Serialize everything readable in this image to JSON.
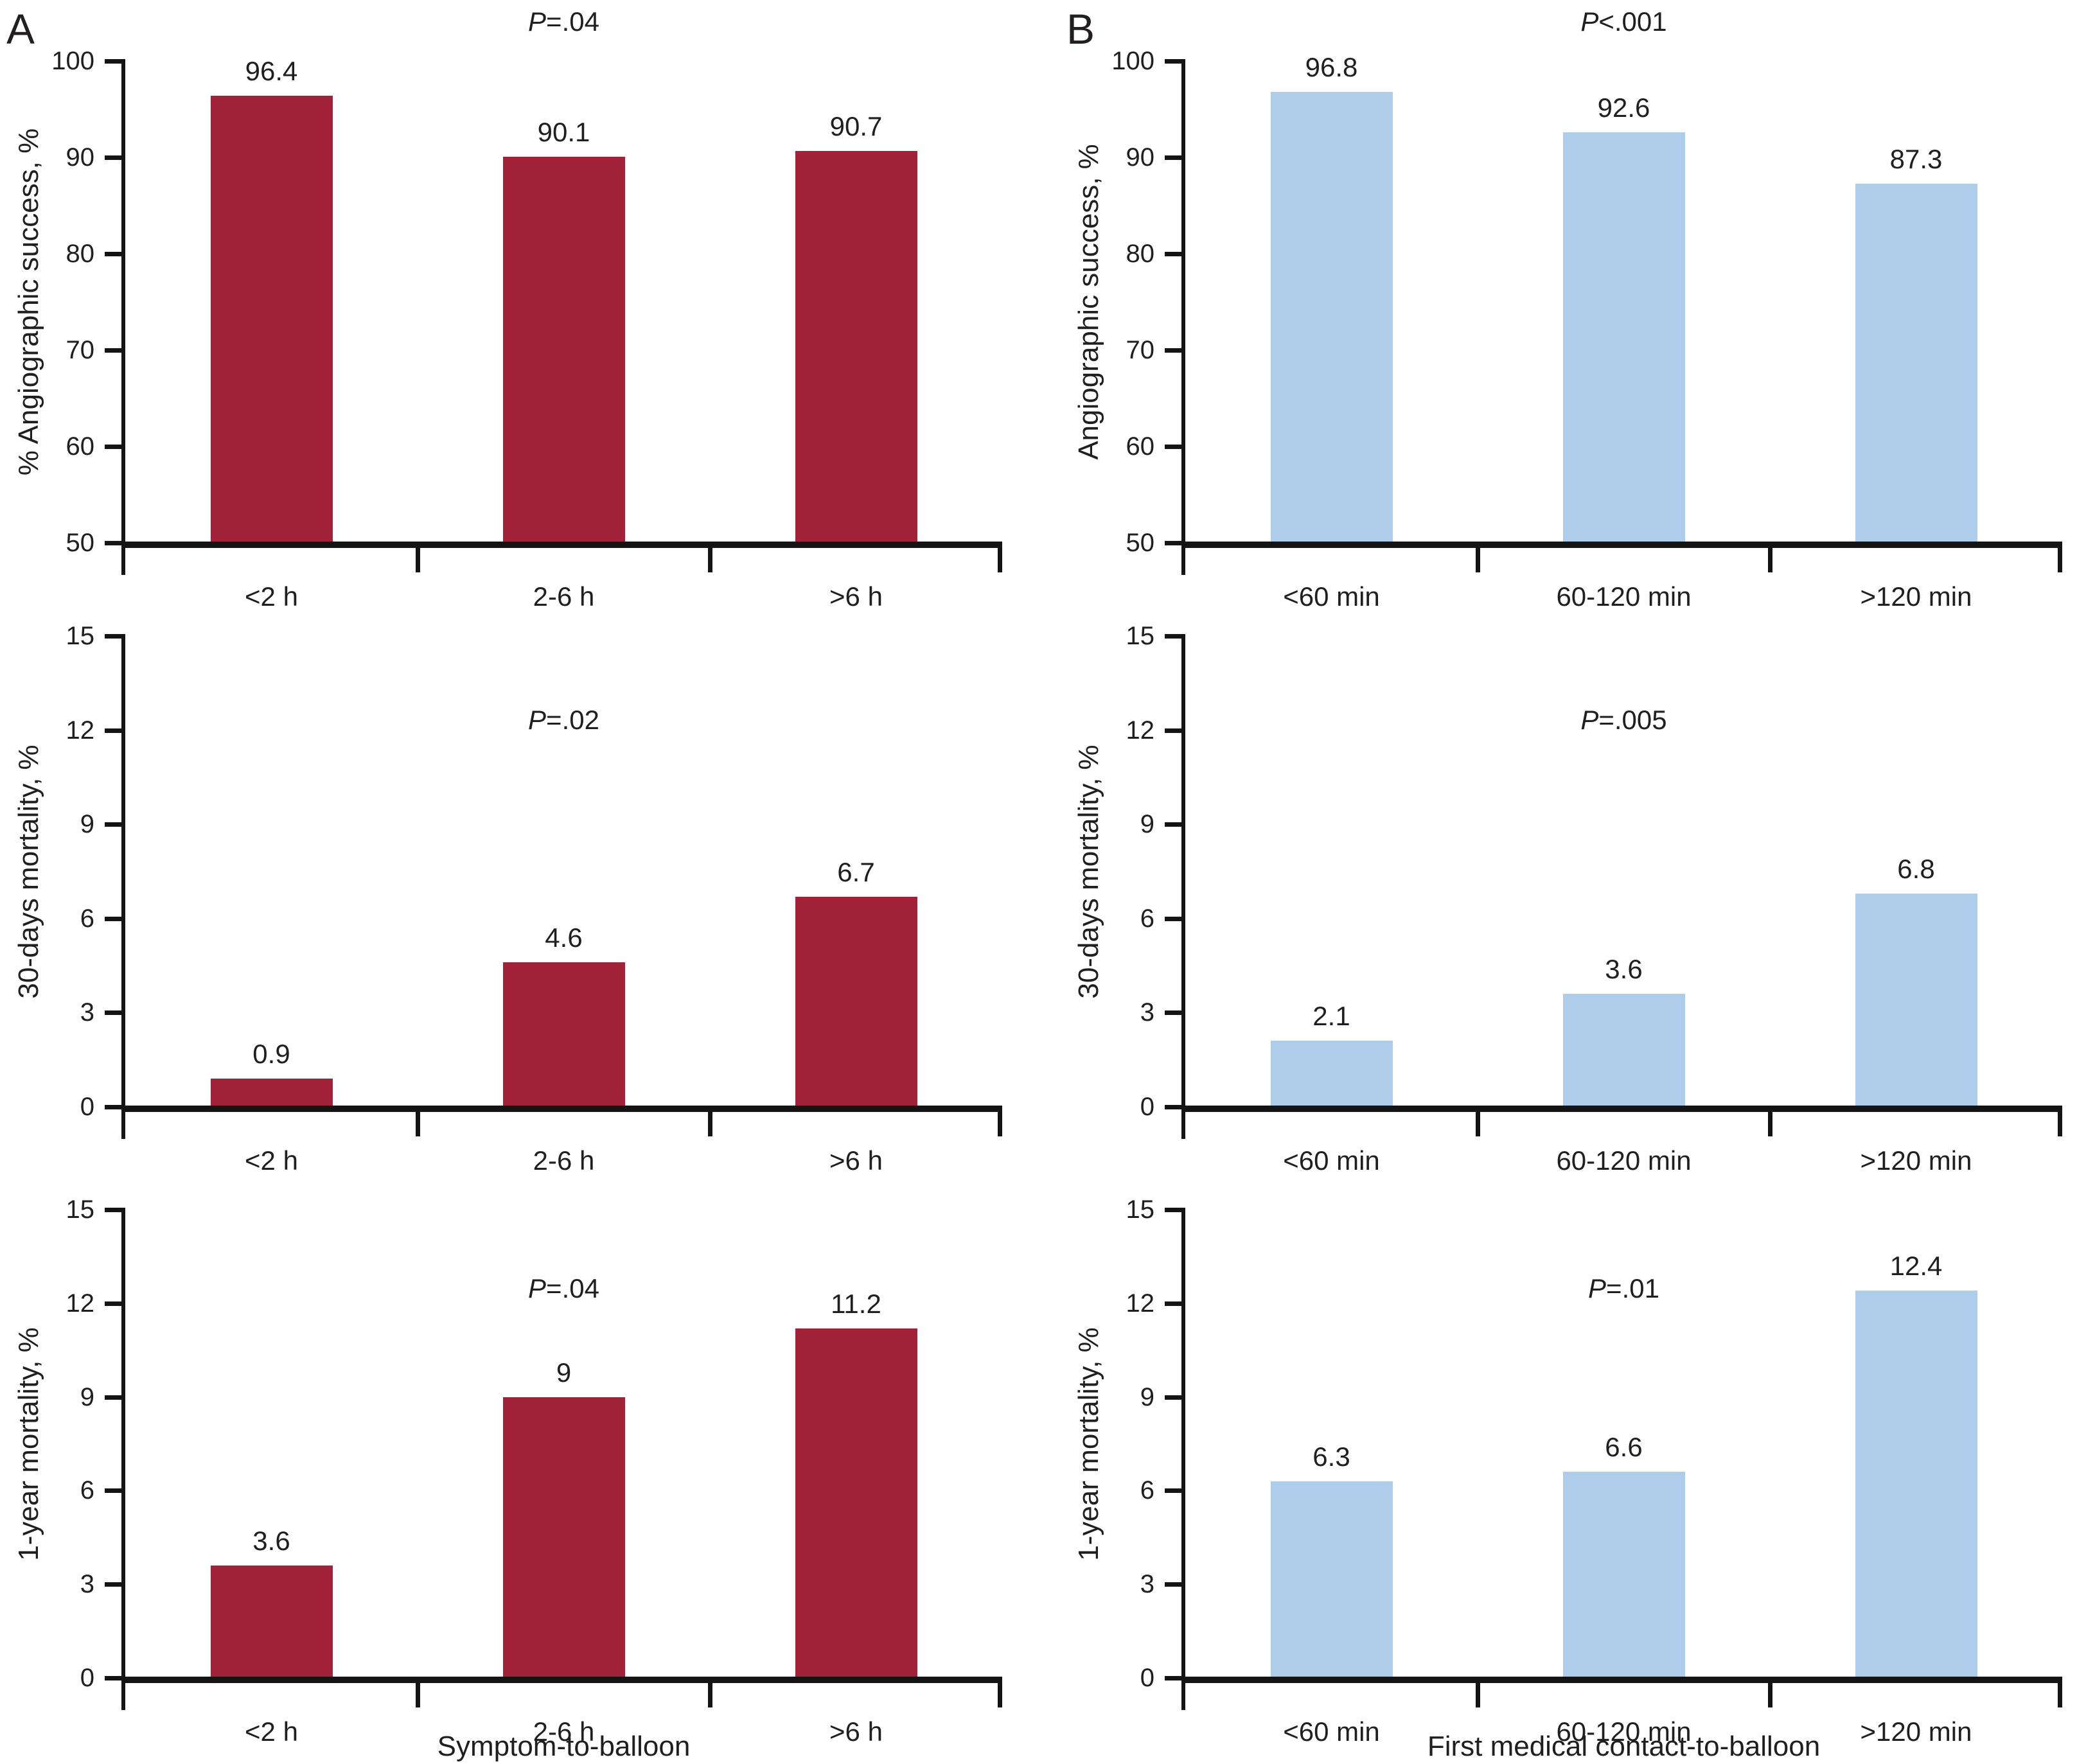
{
  "figure": {
    "panel_labels": [
      "A",
      "B"
    ]
  },
  "colors": {
    "panel_a_bar": "#a22339",
    "panel_b_bar": "#aecdeb",
    "axis_line": "#141414",
    "text": "#1f1f1f",
    "background": "#ffffff"
  },
  "chart_data": [
    {
      "type": "bar",
      "panel": "A",
      "row": 1,
      "p_value": "P=.04",
      "ylabel": "% Angiographic success, %",
      "xlabel": "",
      "categories": [
        "<2 h",
        "2-6 h",
        ">6 h"
      ],
      "values": [
        96.4,
        90.1,
        90.7
      ],
      "value_labels": [
        "96.4",
        "90.1",
        "90.7"
      ],
      "ylim": [
        50,
        100
      ],
      "yticks": [
        100,
        90,
        80,
        70,
        60,
        50
      ],
      "ytick_labels": [
        "100",
        "90",
        "80",
        "70",
        "60",
        "50"
      ],
      "bar_color": "#a22339",
      "grid": false,
      "legend_position": "none"
    },
    {
      "type": "bar",
      "panel": "A",
      "row": 2,
      "p_value": "P=.02",
      "ylabel": "30-days mortality, %",
      "xlabel": "",
      "categories": [
        "<2 h",
        "2-6 h",
        ">6 h"
      ],
      "values": [
        0.9,
        4.6,
        6.7
      ],
      "value_labels": [
        "0.9",
        "4.6",
        "6.7"
      ],
      "ylim": [
        0,
        15
      ],
      "yticks": [
        15,
        12,
        9,
        6,
        3,
        0
      ],
      "ytick_labels": [
        "15",
        "12",
        "9",
        "6",
        "3",
        "0"
      ],
      "bar_color": "#a22339",
      "grid": false,
      "legend_position": "none"
    },
    {
      "type": "bar",
      "panel": "A",
      "row": 3,
      "p_value": "P=.04",
      "ylabel": "1-year mortality, %",
      "xlabel": "Symptom-to-balloon",
      "categories": [
        "<2 h",
        "2-6 h",
        ">6 h"
      ],
      "values": [
        3.6,
        9,
        11.2
      ],
      "value_labels": [
        "3.6",
        "9",
        "11.2"
      ],
      "ylim": [
        0,
        15
      ],
      "yticks": [
        15,
        12,
        9,
        6,
        3,
        0
      ],
      "ytick_labels": [
        "15",
        "12",
        "9",
        "6",
        "3",
        "0"
      ],
      "bar_color": "#a22339",
      "grid": false,
      "legend_position": "none"
    },
    {
      "type": "bar",
      "panel": "B",
      "row": 1,
      "p_value": "P<.001",
      "ylabel": "Angiographic success, %",
      "xlabel": "",
      "categories": [
        "<60 min",
        "60-120 min",
        ">120 min"
      ],
      "values": [
        96.8,
        92.6,
        87.3
      ],
      "value_labels": [
        "96.8",
        "92.6",
        "87.3"
      ],
      "ylim": [
        50,
        100
      ],
      "yticks": [
        100,
        90,
        80,
        70,
        60,
        50
      ],
      "ytick_labels": [
        "100",
        "90",
        "80",
        "70",
        "60",
        "50"
      ],
      "bar_color": "#aecdeb",
      "grid": false,
      "legend_position": "none"
    },
    {
      "type": "bar",
      "panel": "B",
      "row": 2,
      "p_value": "P=.005",
      "ylabel": "30-days mortality, %",
      "xlabel": "",
      "categories": [
        "<60 min",
        "60-120 min",
        ">120 min"
      ],
      "values": [
        2.1,
        3.6,
        6.8
      ],
      "value_labels": [
        "2.1",
        "3.6",
        "6.8"
      ],
      "ylim": [
        0,
        15
      ],
      "yticks": [
        15,
        12,
        9,
        6,
        3,
        0
      ],
      "ytick_labels": [
        "15",
        "12",
        "9",
        "6",
        "3",
        "0"
      ],
      "bar_color": "#aecdeb",
      "grid": false,
      "legend_position": "none"
    },
    {
      "type": "bar",
      "panel": "B",
      "row": 3,
      "p_value": "P=.01",
      "ylabel": "1-year mortality, %",
      "xlabel": "First medical contact-to-balloon",
      "categories": [
        "<60 min",
        "60-120 min",
        ">120 min"
      ],
      "values": [
        6.3,
        6.6,
        12.4
      ],
      "value_labels": [
        "6.3",
        "6.6",
        "12.4"
      ],
      "ylim": [
        0,
        15
      ],
      "yticks": [
        15,
        12,
        9,
        6,
        3,
        0
      ],
      "ytick_labels": [
        "15",
        "12",
        "9",
        "6",
        "3",
        "0"
      ],
      "bar_color": "#aecdeb",
      "grid": false,
      "legend_position": "none"
    }
  ]
}
